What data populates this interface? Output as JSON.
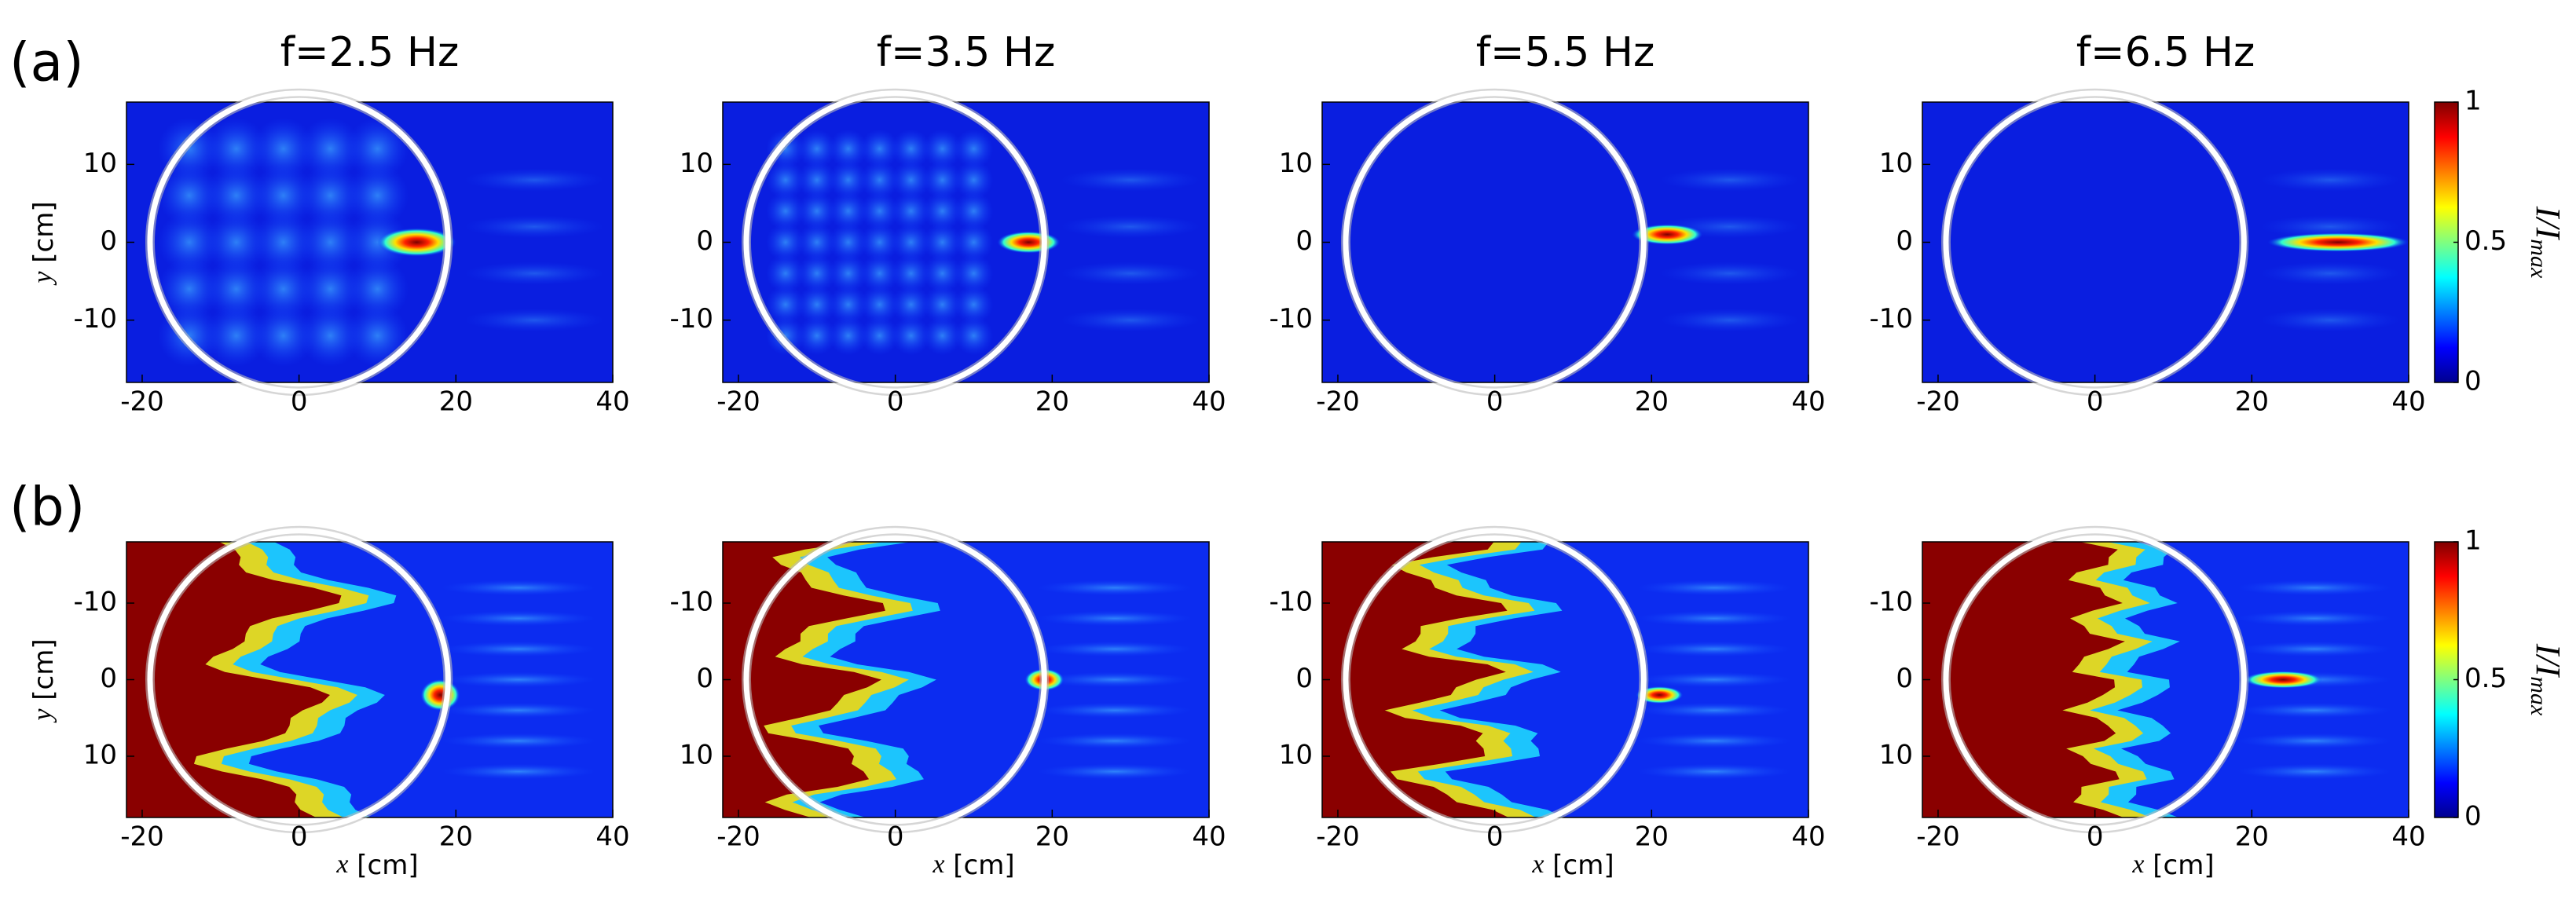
{
  "panel_labels": [
    "(a)",
    "(b)"
  ],
  "chart_data": [
    {
      "type": "heatmap",
      "title": "f=2.5 Hz",
      "ylabel_var": "y",
      "ylabel_unit": "[cm]",
      "xlim": [
        -22,
        40
      ],
      "ylim": [
        -18,
        18
      ],
      "xticks": [
        -20,
        0,
        20,
        40
      ],
      "yticks": [
        -10,
        0,
        10
      ]
    },
    {
      "type": "heatmap",
      "title": "f=3.5 Hz",
      "xlim": [
        -22,
        40
      ],
      "ylim": [
        -18,
        18
      ],
      "xticks": [
        -20,
        0,
        20,
        40
      ],
      "yticks": [
        -10,
        0,
        10
      ]
    },
    {
      "type": "heatmap",
      "title": "f=5.5 Hz",
      "xlim": [
        -22,
        40
      ],
      "ylim": [
        -18,
        18
      ],
      "xticks": [
        -20,
        0,
        20,
        40
      ],
      "yticks": [
        -10,
        0,
        10
      ]
    },
    {
      "type": "heatmap",
      "title": "f=6.5 Hz",
      "xlim": [
        -22,
        40
      ],
      "ylim": [
        -18,
        18
      ],
      "xticks": [
        -20,
        0,
        20,
        40
      ],
      "yticks": [
        -10,
        0,
        10
      ],
      "colorbar": {
        "label": "I/I",
        "label_sub": "max",
        "lim": [
          0,
          1
        ],
        "ticks": [
          0,
          0.5,
          1
        ]
      }
    },
    {
      "type": "heatmap",
      "ylabel_var": "y",
      "ylabel_unit": "[cm]",
      "xlabel_var": "x",
      "xlabel_unit": "[cm]",
      "xlim": [
        -22,
        40
      ],
      "ylim": [
        18,
        -18
      ],
      "xticks": [
        -20,
        0,
        20,
        40
      ],
      "yticks": [
        -10,
        0,
        10
      ]
    },
    {
      "type": "heatmap",
      "xlabel_var": "x",
      "xlabel_unit": "[cm]",
      "xlim": [
        -22,
        40
      ],
      "ylim": [
        18,
        -18
      ],
      "xticks": [
        -20,
        0,
        20,
        40
      ],
      "yticks": [
        -10,
        0,
        10
      ]
    },
    {
      "type": "heatmap",
      "xlabel_var": "x",
      "xlabel_unit": "[cm]",
      "xlim": [
        -22,
        40
      ],
      "ylim": [
        18,
        -18
      ],
      "xticks": [
        -20,
        0,
        20,
        40
      ],
      "yticks": [
        -10,
        0,
        10
      ]
    },
    {
      "type": "heatmap",
      "xlabel_var": "x",
      "xlabel_unit": "[cm]",
      "xlim": [
        -22,
        40
      ],
      "ylim": [
        18,
        -18
      ],
      "xticks": [
        -20,
        0,
        20,
        40
      ],
      "yticks": [
        -10,
        0,
        10
      ],
      "colorbar": {
        "label": "I/I",
        "label_sub": "max",
        "lim": [
          0,
          1
        ],
        "ticks": [
          0,
          0.5,
          1
        ]
      }
    }
  ]
}
